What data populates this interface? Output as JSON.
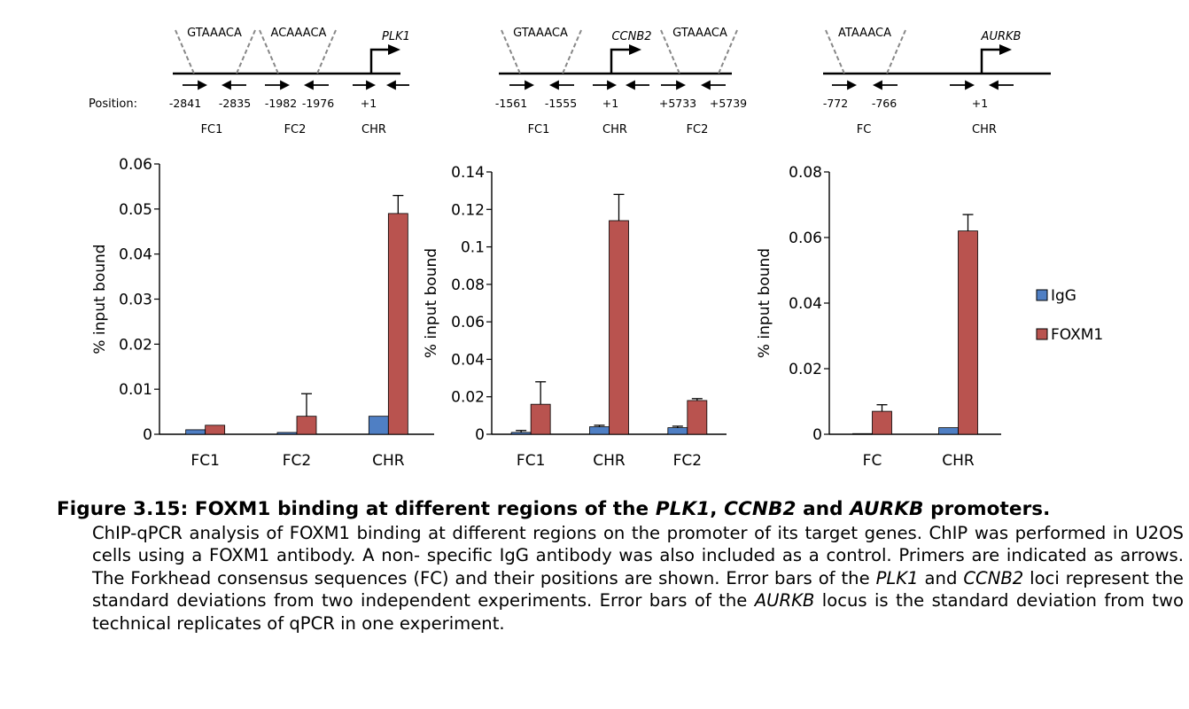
{
  "diagrams": [
    {
      "gene": "PLK1",
      "motifs": [
        "GTAAACA",
        "ACAAACA"
      ],
      "positions": [
        "-2841",
        "-2835",
        "-1982",
        "-1976",
        "+1"
      ],
      "regions": [
        "FC1",
        "FC2",
        "CHR"
      ]
    },
    {
      "gene": "CCNB2",
      "motifs": [
        "GTAAACA",
        "GTAAACA"
      ],
      "positions": [
        "-1561",
        "-1555",
        "+1",
        "+5733",
        "+5739"
      ],
      "regions": [
        "FC1",
        "CHR",
        "FC2"
      ]
    },
    {
      "gene": "AURKB",
      "motifs": [
        "ATAAACA"
      ],
      "positions": [
        "-772",
        "-766",
        "+1"
      ],
      "regions": [
        "FC",
        "CHR"
      ]
    }
  ],
  "position_label": "Position:",
  "legend": [
    "IgG",
    "FOXM1"
  ],
  "colors": {
    "IgG": "#4f7fc4",
    "FOXM1": "#b9534f"
  },
  "chart_data": [
    {
      "type": "bar",
      "ylabel": "% input bound",
      "ylim": [
        0,
        0.06
      ],
      "yticks": [
        "0",
        "0.01",
        "0.02",
        "0.03",
        "0.04",
        "0.05",
        "0.06"
      ],
      "categories": [
        "FC1",
        "FC2",
        "CHR"
      ],
      "series": [
        {
          "name": "IgG",
          "values": [
            0.001,
            0.0004,
            0.004
          ],
          "errors": [
            0,
            0,
            0
          ]
        },
        {
          "name": "FOXM1",
          "values": [
            0.002,
            0.004,
            0.049
          ],
          "errors": [
            0,
            0.005,
            0.004
          ]
        }
      ]
    },
    {
      "type": "bar",
      "ylabel": "% input bound",
      "ylim": [
        0,
        0.14
      ],
      "yticks": [
        "0",
        "0.02",
        "0.04",
        "0.06",
        "0.08",
        "0.1",
        "0.12",
        "0.14"
      ],
      "categories": [
        "FC1",
        "CHR",
        "FC2"
      ],
      "series": [
        {
          "name": "IgG",
          "values": [
            0.001,
            0.004,
            0.0035
          ],
          "errors": [
            0.001,
            0.0008,
            0.0008
          ]
        },
        {
          "name": "FOXM1",
          "values": [
            0.016,
            0.114,
            0.018
          ],
          "errors": [
            0.012,
            0.014,
            0.001
          ]
        }
      ]
    },
    {
      "type": "bar",
      "ylabel": "% input bound",
      "ylim": [
        0,
        0.08
      ],
      "yticks": [
        "0",
        "0.02",
        "0.04",
        "0.06",
        "0.08"
      ],
      "categories": [
        "FC",
        "CHR"
      ],
      "series": [
        {
          "name": "IgG",
          "values": [
            0.0002,
            0.002
          ],
          "errors": [
            0,
            0
          ]
        },
        {
          "name": "FOXM1",
          "values": [
            0.007,
            0.062
          ],
          "errors": [
            0.002,
            0.005
          ]
        }
      ]
    }
  ],
  "caption": {
    "head": [
      {
        "t": "Figure 3.15: FOXM1 binding at different regions of the ",
        "i": false
      },
      {
        "t": "PLK1",
        "i": true
      },
      {
        "t": ", ",
        "i": false
      },
      {
        "t": "CCNB2",
        "i": true
      },
      {
        "t": " and ",
        "i": false
      },
      {
        "t": "AURKB",
        "i": true
      },
      {
        "t": " promoters.",
        "i": false
      }
    ],
    "body": [
      {
        "t": "ChIP-qPCR analysis of FOXM1 binding at different regions on the promoter of its target genes. ChIP was performed in U2OS cells using a FOXM1 antibody. A non- specific IgG antibody was also included as a control. Primers are indicated as arrows. The Forkhead consensus sequences (FC) and their positions are shown. Error bars of the ",
        "i": false
      },
      {
        "t": "PLK1",
        "i": true
      },
      {
        "t": " and ",
        "i": false
      },
      {
        "t": "CCNB2",
        "i": true
      },
      {
        "t": " loci represent the standard deviations from two independent experiments. Error bars of the ",
        "i": false
      },
      {
        "t": "AURKB",
        "i": true
      },
      {
        "t": " locus is the standard deviation from two technical replicates of qPCR in one experiment.",
        "i": false
      }
    ]
  }
}
